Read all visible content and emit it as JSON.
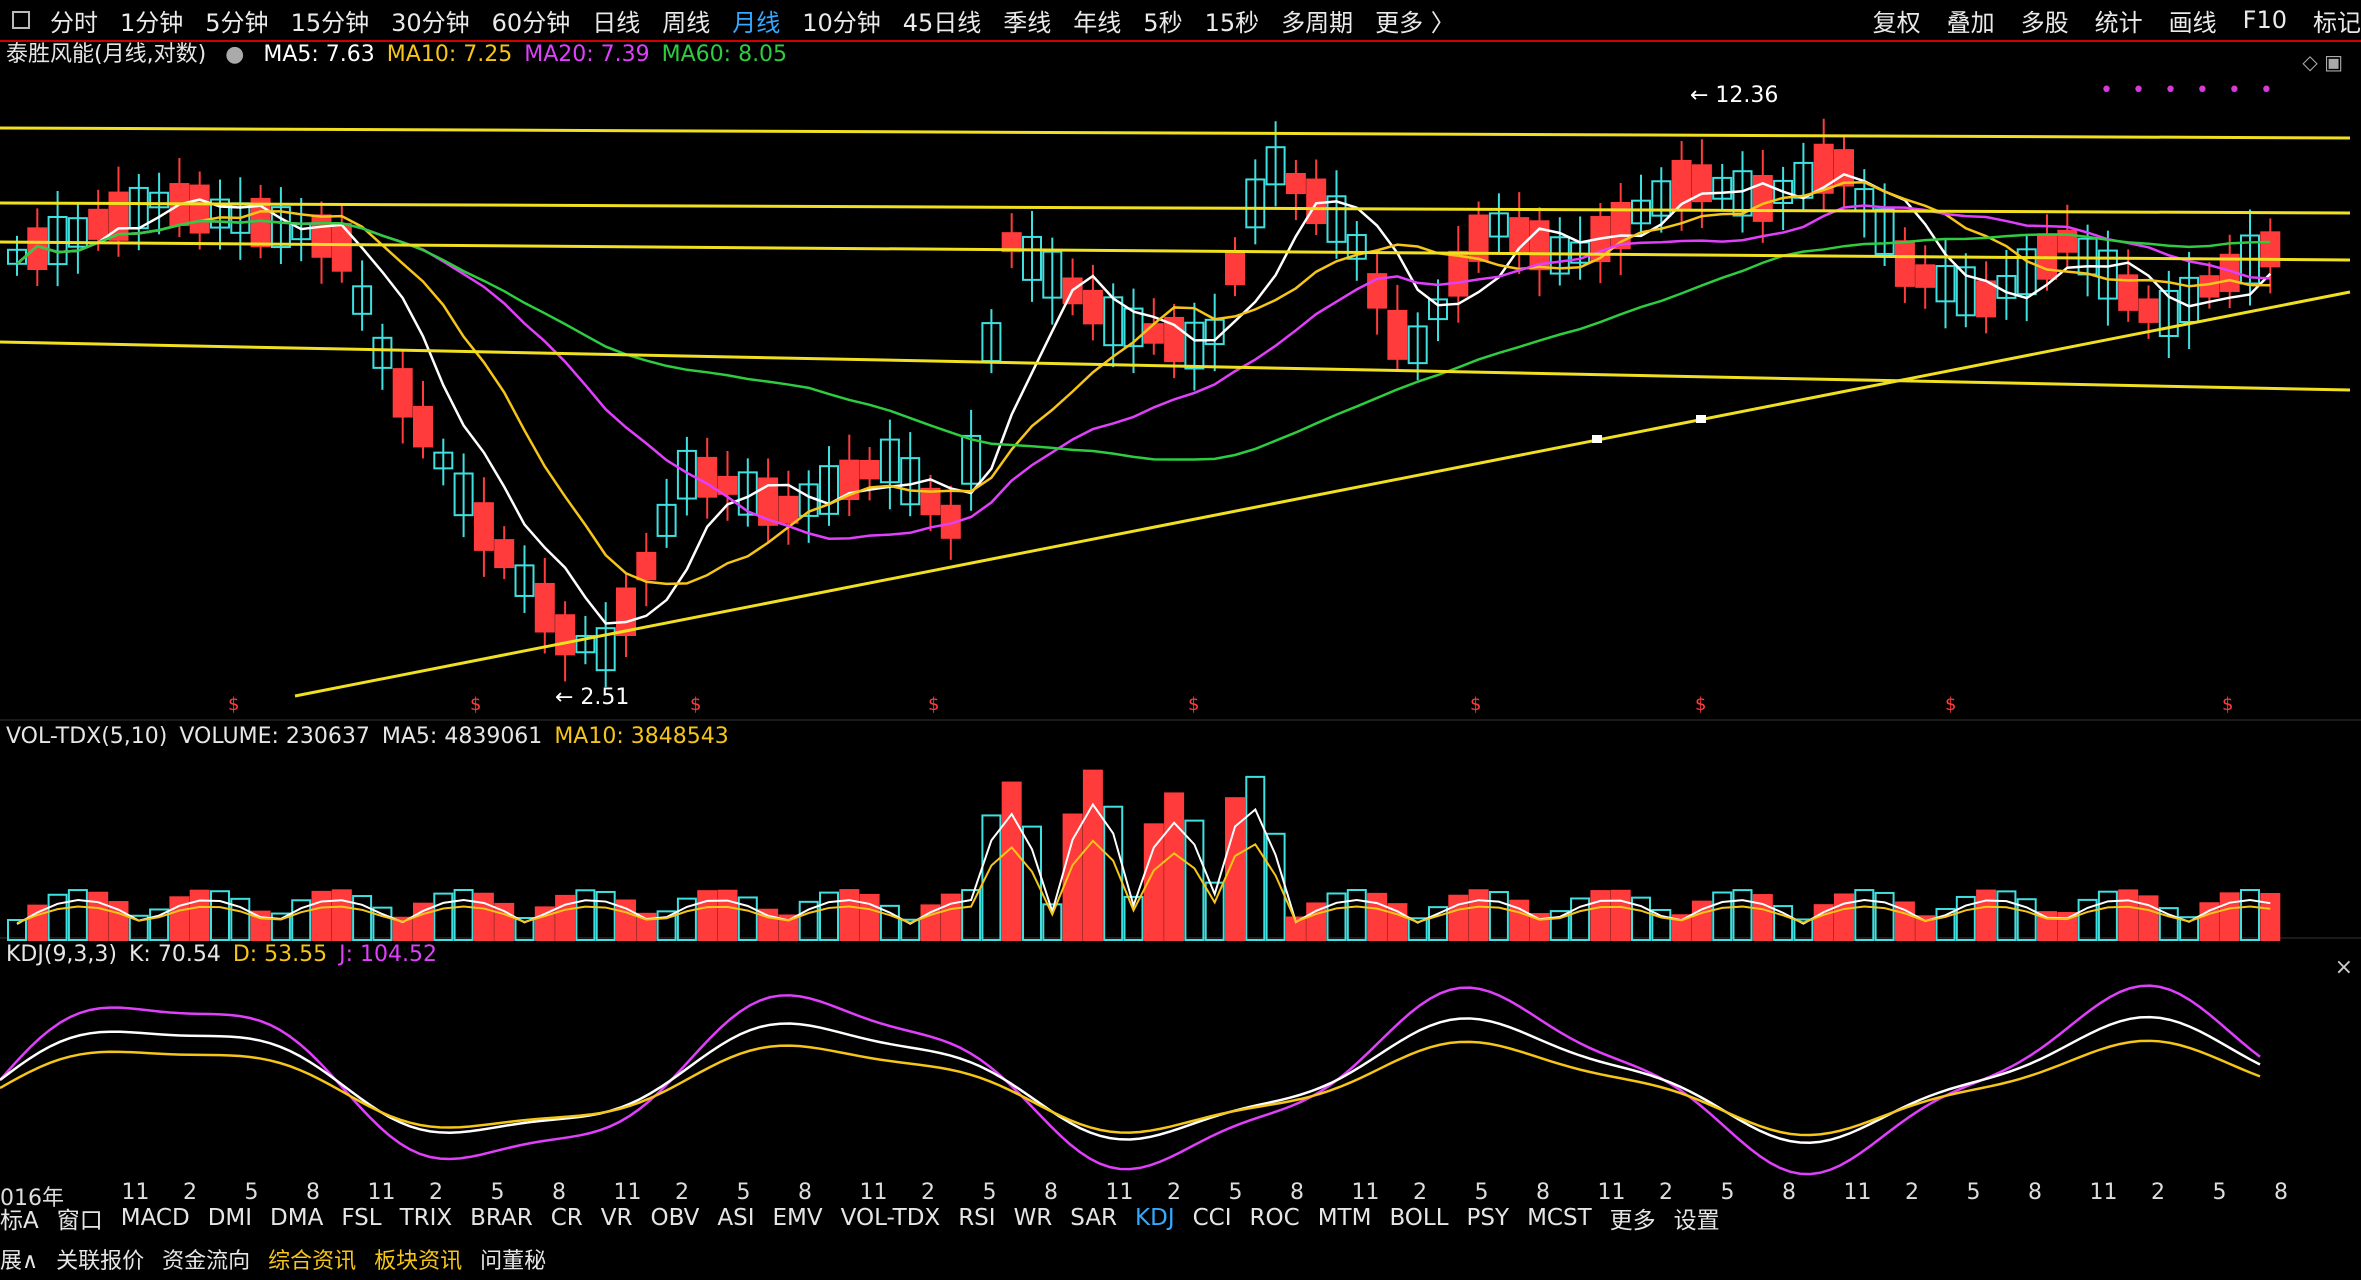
{
  "topbar": {
    "timeframes": [
      "分时",
      "1分钟",
      "5分钟",
      "15分钟",
      "30分钟",
      "60分钟",
      "日线",
      "周线",
      "月线",
      "10分钟",
      "45日线",
      "季线",
      "年线",
      "5秒",
      "15秒",
      "多周期",
      "更多 〉"
    ],
    "active_index": 8,
    "tools": [
      "复权",
      "叠加",
      "多股",
      "统计",
      "画线",
      "F10",
      "标记"
    ]
  },
  "main_legend": {
    "title": "泰胜风能(月线,对数)",
    "items": [
      {
        "label": "MA5: 7.63",
        "color": "#ffffff"
      },
      {
        "label": "MA10: 7.25",
        "color": "#f5c518"
      },
      {
        "label": "MA20: 7.39",
        "color": "#e040fb"
      },
      {
        "label": "MA60: 8.05",
        "color": "#2ecc40"
      }
    ]
  },
  "price_labels": {
    "high": "12.36",
    "low": "2.51"
  },
  "vol_legend": {
    "items": [
      {
        "label": "VOL-TDX(5,10)",
        "color": "#e6e6e6"
      },
      {
        "label": "VOLUME: 230637",
        "color": "#e6e6e6"
      },
      {
        "label": "MA5: 4839061",
        "color": "#e6e6e6"
      },
      {
        "label": "MA10: 3848543",
        "color": "#f5c518"
      }
    ]
  },
  "kdj_legend": {
    "items": [
      {
        "label": "KDJ(9,3,3)",
        "color": "#e6e6e6"
      },
      {
        "label": "K: 70.54",
        "color": "#e6e6e6"
      },
      {
        "label": "D: 53.55",
        "color": "#f5c518"
      },
      {
        "label": "J: 104.52",
        "color": "#e040fb"
      }
    ]
  },
  "x_labels": [
    "016年",
    "11",
    "2",
    "5",
    "8",
    "11",
    "2",
    "5",
    "8",
    "11",
    "2",
    "5",
    "8",
    "11",
    "2",
    "5",
    "8",
    "11",
    "2",
    "5",
    "8",
    "11",
    "2",
    "5",
    "8",
    "11",
    "2",
    "5",
    "8",
    "11",
    "2",
    "5",
    "8",
    "11",
    "2",
    "5",
    "8"
  ],
  "indicators": [
    "标A",
    "窗口",
    "MACD",
    "DMI",
    "DMA",
    "FSL",
    "TRIX",
    "BRAR",
    "CR",
    "VR",
    "OBV",
    "ASI",
    "EMV",
    "VOL-TDX",
    "RSI",
    "WR",
    "SAR",
    "KDJ",
    "CCI",
    "ROC",
    "MTM",
    "BOLL",
    "PSY",
    "MCST",
    "更多",
    "设置"
  ],
  "active_indicator": "KDJ",
  "bottom_tabs": [
    {
      "label": "展∧",
      "color": "#e6e6e6"
    },
    {
      "label": "关联报价",
      "color": "#e6e6e6"
    },
    {
      "label": "资金流向",
      "color": "#e6e6e6"
    },
    {
      "label": "综合资讯",
      "color": "#f5c518"
    },
    {
      "label": "板块资讯",
      "color": "#f5c518"
    },
    {
      "label": "问董秘",
      "color": "#e6e6e6"
    }
  ],
  "colors": {
    "up": "#ff3b3b",
    "down": "#3fe0e0",
    "ma5": "#ffffff",
    "ma10": "#f5c518",
    "ma20": "#e040fb",
    "ma60": "#2ecc40",
    "trend": "#f0e020"
  }
}
